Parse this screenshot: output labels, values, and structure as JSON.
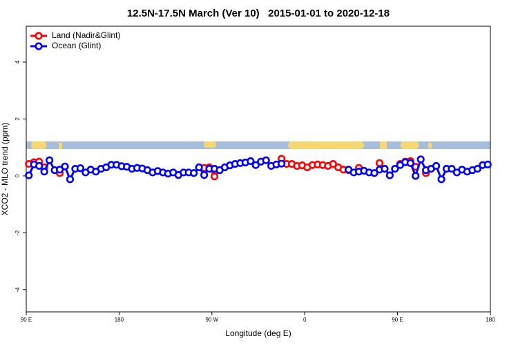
{
  "chart_data": {
    "type": "line",
    "title": "12.5N-17.5N March (Ver 10)   2015-01-01 to 2020-12-18",
    "x_label": "Longitude (deg E)",
    "y_label": "XCO2 - MLO trend (ppm)",
    "xlim": [
      90,
      540
    ],
    "ylim": [
      -4.78,
      5.26
    ],
    "xticks": [
      {
        "value": 90,
        "label": "90 E"
      },
      {
        "value": 180,
        "label": "180"
      },
      {
        "value": 270,
        "label": "90 W"
      },
      {
        "value": 360,
        "label": "0"
      },
      {
        "value": 450,
        "label": "90 E"
      },
      {
        "value": 540,
        "label": "180"
      }
    ],
    "yticks": [
      -4,
      -2,
      0,
      2,
      4
    ],
    "legend": "top-left",
    "x": [
      92.5,
      97.5,
      102.5,
      107.5,
      112.5,
      117.5,
      122.5,
      127.5,
      132.5,
      137.5,
      142.5,
      147.5,
      152.5,
      157.5,
      162.5,
      167.5,
      172.5,
      177.5,
      182.5,
      187.5,
      192.5,
      197.5,
      202.5,
      207.5,
      212.5,
      217.5,
      222.5,
      227.5,
      232.5,
      237.5,
      242.5,
      247.5,
      252.5,
      257.5,
      262.5,
      267.5,
      272.5,
      277.5,
      282.5,
      287.5,
      292.5,
      297.5,
      302.5,
      307.5,
      312.5,
      317.5,
      322.5,
      327.5,
      332.5,
      337.5,
      342.5,
      347.5,
      352.5,
      357.5,
      362.5,
      367.5,
      372.5,
      377.5,
      382.5,
      387.5,
      392.5,
      397.5,
      402.5,
      407.5,
      412.5,
      417.5,
      422.5,
      427.5,
      432.5,
      437.5,
      442.5,
      447.5,
      452.5,
      457.5,
      462.5,
      467.5,
      472.5,
      477.5,
      482.5,
      487.5,
      492.5,
      497.5,
      502.5,
      507.5,
      512.5,
      517.5,
      522.5,
      527.5,
      532.5,
      537.5
    ],
    "series": [
      {
        "name": "Land (Nadir&Glint)",
        "color": "#ff0000",
        "values": [
          0.42,
          0.48,
          0.5,
          0.3,
          null,
          null,
          0.1,
          null,
          null,
          null,
          null,
          null,
          null,
          null,
          null,
          null,
          null,
          null,
          null,
          null,
          null,
          null,
          null,
          null,
          null,
          null,
          null,
          null,
          null,
          null,
          null,
          null,
          null,
          null,
          0.28,
          0.3,
          -0.02,
          0.2,
          null,
          null,
          null,
          null,
          null,
          null,
          null,
          null,
          null,
          null,
          null,
          0.6,
          0.42,
          0.42,
          0.35,
          0.37,
          0.3,
          0.38,
          0.4,
          0.38,
          0.35,
          0.42,
          0.3,
          0.22,
          0.2,
          null,
          0.28,
          null,
          null,
          null,
          0.45,
          0.25,
          null,
          null,
          0.42,
          0.5,
          0.52,
          0.32,
          null,
          0.1,
          null,
          null,
          null,
          null,
          null,
          null,
          null,
          null,
          null,
          null,
          null,
          null
        ]
      },
      {
        "name": "Ocean (Glint)",
        "color": "#0000ff",
        "values": [
          0.02,
          0.4,
          0.35,
          0.15,
          0.55,
          0.2,
          0.22,
          0.33,
          -0.12,
          0.25,
          0.27,
          0.12,
          0.22,
          0.15,
          0.25,
          0.3,
          0.39,
          0.39,
          0.34,
          0.32,
          0.25,
          0.28,
          0.26,
          0.2,
          0.12,
          0.17,
          0.12,
          0.08,
          0.12,
          0.03,
          0.12,
          0.12,
          0.1,
          0.3,
          0.03,
          0.25,
          0.25,
          0.2,
          0.3,
          0.37,
          0.42,
          0.45,
          0.47,
          0.52,
          0.38,
          0.5,
          0.55,
          0.35,
          0.4,
          0.43,
          null,
          null,
          null,
          null,
          null,
          null,
          null,
          null,
          null,
          null,
          null,
          null,
          0.22,
          0.12,
          0.15,
          0.18,
          0.12,
          0.1,
          0.22,
          0.25,
          0.02,
          0.25,
          0.38,
          0.48,
          0.45,
          0.0,
          0.58,
          0.2,
          0.25,
          0.35,
          -0.12,
          0.25,
          0.25,
          0.12,
          0.22,
          0.15,
          0.2,
          0.25,
          0.38,
          0.4
        ]
      }
    ]
  }
}
